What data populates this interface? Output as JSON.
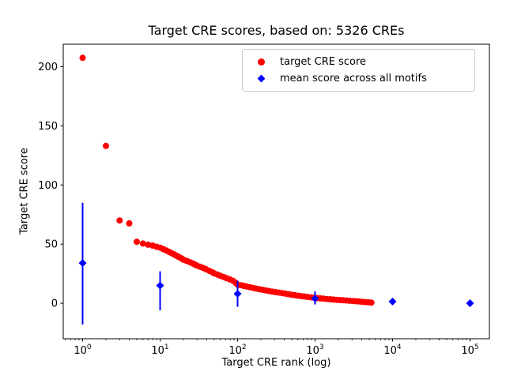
{
  "figure": {
    "title": "Target CRE scores, based on: 5326 CREs",
    "xlabel": "Target CRE rank (log)",
    "ylabel": "Target CRE score"
  },
  "legend": {
    "items": [
      {
        "label": "target CRE score",
        "marker": "circle",
        "color": "#ff0000"
      },
      {
        "label": "mean score across all motifs",
        "marker": "diamond",
        "color": "#0000ff"
      }
    ]
  },
  "chart_data": {
    "type": "scatter",
    "title": "Target CRE scores, based on: 5326 CREs",
    "xlabel": "Target CRE rank (log)",
    "ylabel": "Target CRE score",
    "x_scale": "log",
    "xlim": [
      0.5623,
      177827
    ],
    "ylim": [
      -30,
      219
    ],
    "x_tick_exponents": [
      0,
      1,
      2,
      3,
      4,
      5
    ],
    "y_ticks": [
      0,
      50,
      100,
      150,
      200
    ],
    "grid": false,
    "legend_position": "upper right",
    "series": [
      {
        "name": "target CRE score",
        "plot_type": "scatter",
        "marker": "circle",
        "color": "#ff0000",
        "points": [
          [
            1,
            207.5
          ],
          [
            2,
            133
          ],
          [
            3,
            70
          ],
          [
            4,
            67.5
          ],
          [
            5,
            52
          ],
          [
            6,
            50.5
          ],
          [
            7,
            49.5
          ],
          [
            8,
            48.8
          ],
          [
            9,
            47.8
          ],
          [
            10,
            47
          ],
          [
            11,
            45.8
          ],
          [
            12,
            44.6
          ],
          [
            13,
            43.5
          ],
          [
            14,
            42.4
          ],
          [
            15,
            41.4
          ],
          [
            16,
            40.4
          ],
          [
            17,
            39.5
          ],
          [
            18,
            38.6
          ],
          [
            19,
            37.8
          ],
          [
            20,
            36.8
          ],
          [
            22,
            35.8
          ],
          [
            24,
            34.8
          ],
          [
            26,
            33.8
          ],
          [
            28,
            32.8
          ],
          [
            30,
            31.8
          ],
          [
            33,
            30.8
          ],
          [
            36,
            29.8
          ],
          [
            39,
            28.8
          ],
          [
            43,
            27.5
          ],
          [
            47,
            26.3
          ],
          [
            50,
            25.2
          ],
          [
            55,
            24.2
          ],
          [
            60,
            23.2
          ],
          [
            66,
            22.2
          ],
          [
            72,
            21.2
          ],
          [
            79,
            20.2
          ],
          [
            87,
            19
          ],
          [
            95,
            17.2
          ],
          [
            100,
            15.8
          ],
          [
            110,
            15.2
          ],
          [
            120,
            14.7
          ],
          [
            132,
            14.1
          ],
          [
            145,
            13.5
          ],
          [
            160,
            12.9
          ],
          [
            175,
            12.3
          ],
          [
            193,
            11.8
          ],
          [
            212,
            11.3
          ],
          [
            233,
            10.8
          ],
          [
            256,
            10.3
          ],
          [
            282,
            9.8
          ],
          [
            310,
            9.4
          ],
          [
            341,
            9
          ],
          [
            375,
            8.5
          ],
          [
            412,
            8.1
          ],
          [
            453,
            7.7
          ],
          [
            498,
            7.2
          ],
          [
            548,
            6.8
          ],
          [
            603,
            6.4
          ],
          [
            663,
            6
          ],
          [
            729,
            5.7
          ],
          [
            802,
            5.3
          ],
          [
            882,
            5
          ],
          [
            970,
            4.7
          ],
          [
            1067,
            4.4
          ],
          [
            1174,
            4.1
          ],
          [
            1291,
            3.9
          ],
          [
            1420,
            3.6
          ],
          [
            1562,
            3.4
          ],
          [
            1718,
            3.1
          ],
          [
            1890,
            2.9
          ],
          [
            2079,
            2.7
          ],
          [
            2287,
            2.5
          ],
          [
            2515,
            2.3
          ],
          [
            2767,
            2.1
          ],
          [
            3043,
            1.9
          ],
          [
            3347,
            1.7
          ],
          [
            3682,
            1.5
          ],
          [
            4050,
            1.2
          ],
          [
            4455,
            1
          ],
          [
            4900,
            0.8
          ],
          [
            5326,
            0.6
          ]
        ]
      },
      {
        "name": "mean score across all motifs",
        "plot_type": "errorbar",
        "marker": "diamond",
        "color": "#0000ff",
        "x": [
          1,
          10,
          100,
          1000,
          10000,
          100000
        ],
        "y": [
          34,
          15,
          8,
          4,
          1.5,
          0
        ],
        "y_err_low": [
          -18,
          -6,
          -3,
          -1,
          0,
          -0.5
        ],
        "y_err_high": [
          85,
          27,
          19,
          10,
          3,
          0.5
        ]
      }
    ]
  }
}
